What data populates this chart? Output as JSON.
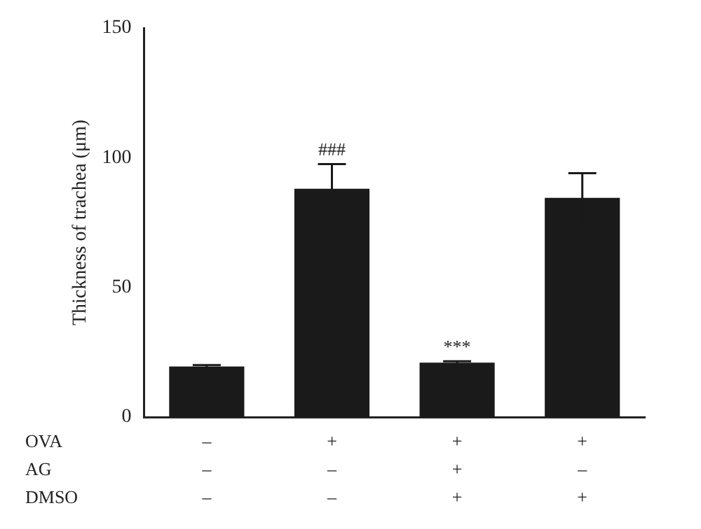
{
  "chart_data": {
    "type": "bar",
    "ylabel": "Thickness of trachea (μm)",
    "categories": [
      "–\n–\n–",
      "+\n–\n–",
      "+\n+\n+",
      "+\n–\n+"
    ],
    "values": [
      19.5,
      88,
      21,
      84.5
    ],
    "errors": [
      0.5,
      9.5,
      0.5,
      9.5
    ],
    "color": "#1a1a1a",
    "ylim": [
      0,
      150
    ],
    "yticks": [
      0,
      50,
      100,
      150
    ],
    "grid": false,
    "legend": false,
    "annotations": [
      {
        "text": "###",
        "x": "+\n–\n–",
        "y": 97.5
      },
      {
        "text": "***",
        "x": "+\n+\n+",
        "y": 21.5
      },
      "OVA",
      "AG",
      "DMSO"
    ]
  }
}
